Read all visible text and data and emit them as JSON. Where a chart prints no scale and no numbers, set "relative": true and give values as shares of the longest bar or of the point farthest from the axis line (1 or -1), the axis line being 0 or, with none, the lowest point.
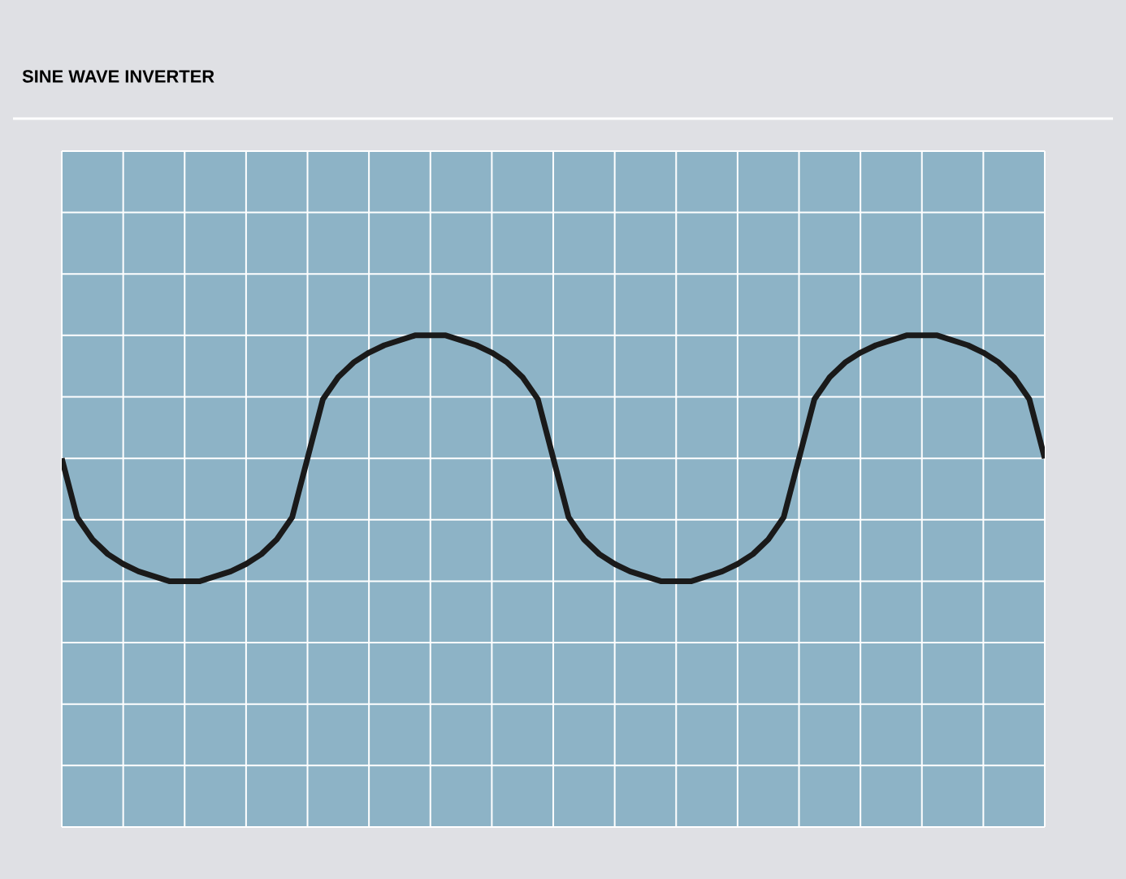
{
  "chart_data": {
    "type": "line",
    "title": "SINE WAVE INVERTER",
    "relative": true,
    "grid": true,
    "tick_labels": false,
    "color": "#1a1a1a",
    "categories": [
      null,
      null,
      null,
      null,
      null,
      null,
      null,
      null,
      null,
      null,
      null,
      null,
      null,
      null,
      null,
      null,
      null,
      null,
      null,
      null,
      null,
      null,
      null,
      null,
      null,
      null,
      null,
      null,
      null,
      null,
      null,
      null,
      null,
      null,
      null,
      null,
      null,
      null,
      null,
      null,
      null,
      null,
      null,
      null,
      null,
      null,
      null,
      null,
      null,
      null,
      null,
      null,
      null,
      null,
      null,
      null,
      null,
      null,
      null,
      null,
      null,
      null,
      null,
      null,
      null
    ],
    "values": [
      0.5,
      0.26,
      0.17,
      0.11,
      0.07,
      0.04,
      0.02,
      0,
      0,
      0,
      0.02,
      0.04,
      0.07,
      0.11,
      0.17,
      0.26,
      0.5,
      0.74,
      0.83,
      0.89,
      0.93,
      0.96,
      0.98,
      1,
      1,
      1,
      0.98,
      0.96,
      0.93,
      0.89,
      0.83,
      0.74,
      0.5,
      0.26,
      0.17,
      0.11,
      0.07,
      0.04,
      0.02,
      0,
      0,
      0,
      0.02,
      0.04,
      0.07,
      0.11,
      0.17,
      0.26,
      0.5,
      0.74,
      0.83,
      0.89,
      0.93,
      0.96,
      0.98,
      1,
      1,
      1,
      0.98,
      0.96,
      0.93,
      0.89,
      0.83,
      0.74,
      0.5
    ]
  }
}
